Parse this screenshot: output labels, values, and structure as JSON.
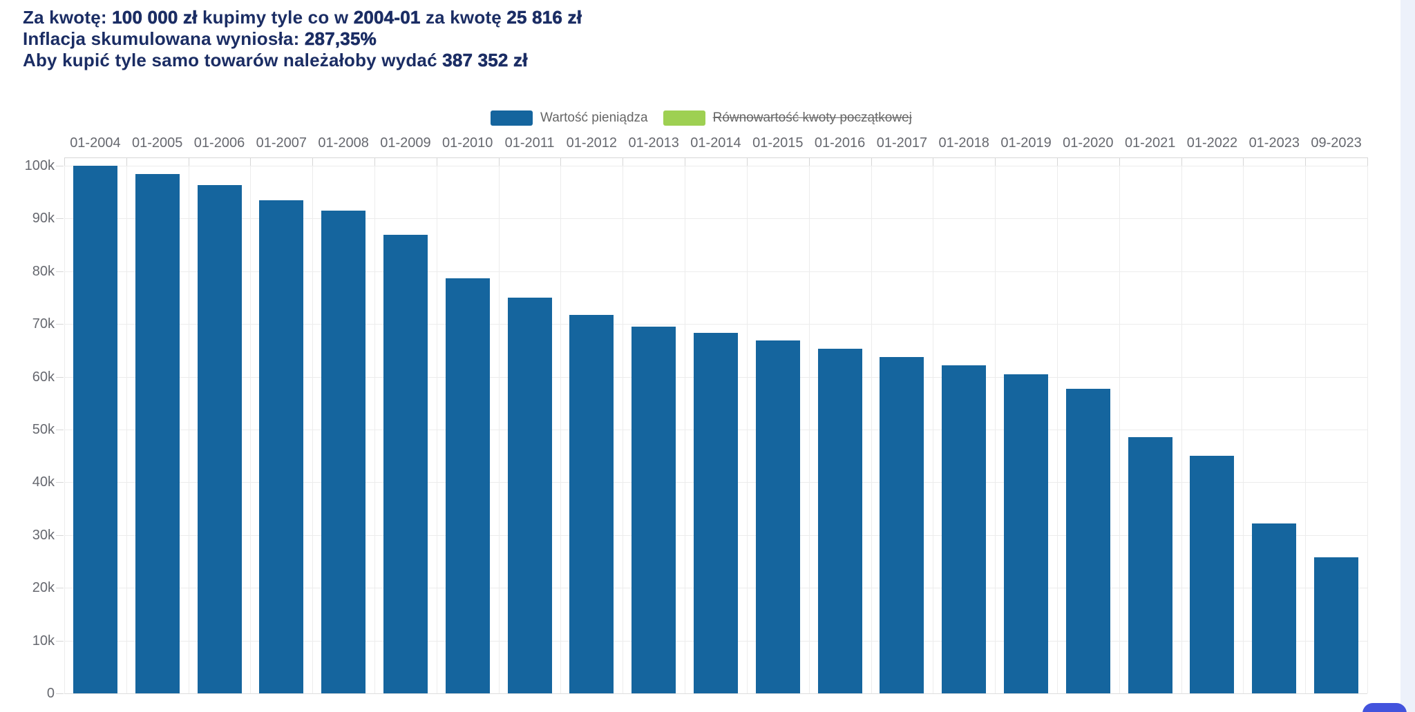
{
  "header": {
    "line1": {
      "t1": "Za kwotę: ",
      "b1": "100 000 zł",
      "t2": " kupimy tyle co w ",
      "b2": "2004-01",
      "t3": " za kwotę ",
      "b3": "25 816 zł"
    },
    "line2": {
      "t1": "Inflacja skumulowana wyniosła: ",
      "b1": "287,35%"
    },
    "line3": {
      "t1": "Aby kupić tyle samo towarów należałoby wydać ",
      "b1": "387 352 zł"
    },
    "text_color": "#1B2D64"
  },
  "legend": {
    "items": [
      {
        "label": "Wartość pieniądza",
        "color": "#15659E",
        "disabled": false
      },
      {
        "label": "Równowartość kwoty początkowej",
        "color": "#9ED052",
        "disabled": true
      }
    ]
  },
  "chart_data": {
    "type": "bar",
    "title": "",
    "xlabel": "",
    "ylabel": "",
    "x_axis_position": "top",
    "grid": true,
    "legend_position": "top-center",
    "ylim": [
      0,
      100000
    ],
    "categories": [
      "01-2004",
      "01-2005",
      "01-2006",
      "01-2007",
      "01-2008",
      "01-2009",
      "01-2010",
      "01-2011",
      "01-2012",
      "01-2013",
      "01-2014",
      "01-2015",
      "01-2016",
      "01-2017",
      "01-2018",
      "01-2019",
      "01-2020",
      "01-2021",
      "01-2022",
      "01-2023",
      "09-2023"
    ],
    "series": [
      {
        "name": "Wartość pieniądza",
        "color": "#15659E",
        "visible": true,
        "values": [
          100000,
          98400,
          96300,
          93500,
          91500,
          86900,
          78700,
          75000,
          71700,
          69500,
          68300,
          66900,
          65300,
          63700,
          62200,
          60500,
          57700,
          48600,
          45000,
          32200,
          25816
        ]
      },
      {
        "name": "Równowartość kwoty początkowej",
        "color": "#9ED052",
        "visible": false
      }
    ],
    "y_ticks": [
      {
        "value": 0,
        "label": "0"
      },
      {
        "value": 10000,
        "label": "10k"
      },
      {
        "value": 20000,
        "label": "20k"
      },
      {
        "value": 30000,
        "label": "30k"
      },
      {
        "value": 40000,
        "label": "40k"
      },
      {
        "value": 50000,
        "label": "50k"
      },
      {
        "value": 60000,
        "label": "60k"
      },
      {
        "value": 70000,
        "label": "70k"
      },
      {
        "value": 80000,
        "label": "80k"
      },
      {
        "value": 90000,
        "label": "90k"
      },
      {
        "value": 100000,
        "label": "100k"
      }
    ]
  },
  "colors": {
    "edge_strip": "#EDF1FA",
    "fab": "#4353DD"
  }
}
